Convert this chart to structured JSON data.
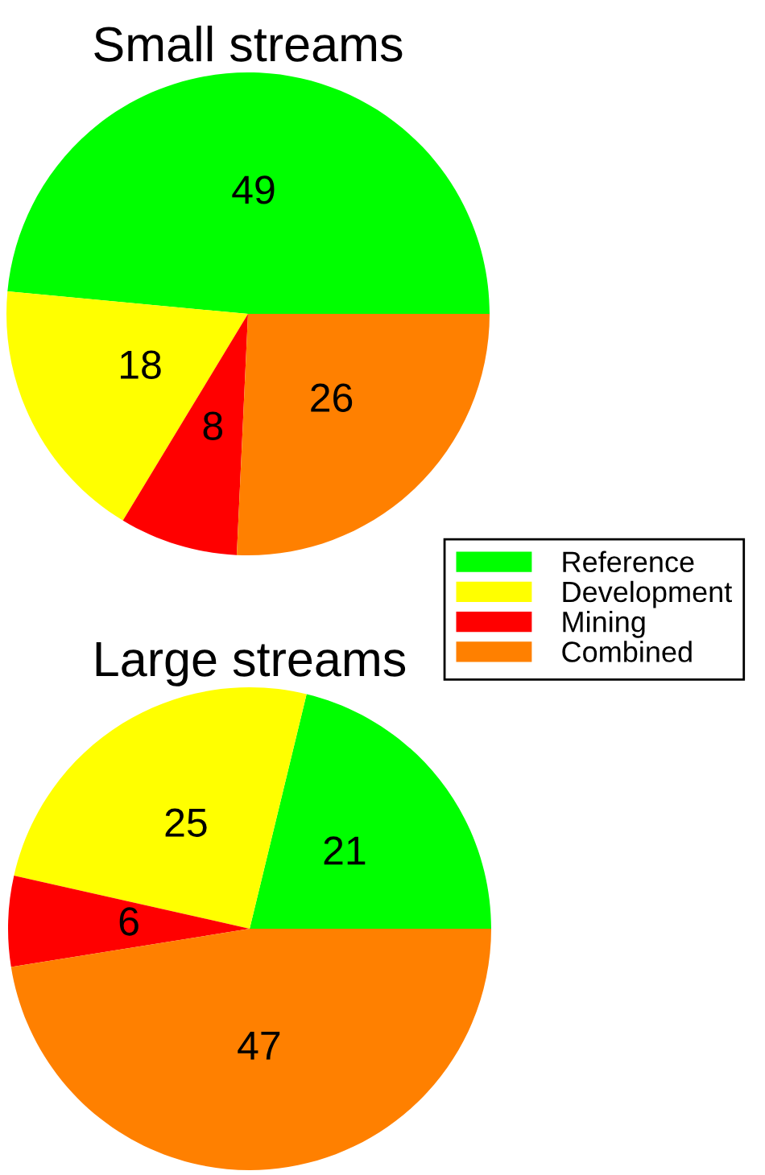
{
  "chart_data": [
    {
      "type": "pie",
      "title": "Small streams",
      "categories": [
        "Reference",
        "Development",
        "Mining",
        "Combined"
      ],
      "values": [
        49,
        18,
        8,
        26
      ],
      "colors": [
        "#00ff00",
        "#ffff00",
        "#ff0000",
        "#ff8000"
      ],
      "data_labels": true,
      "legend": "bottom right"
    },
    {
      "type": "pie",
      "title": "Large streams",
      "categories": [
        null,
        null,
        null,
        null
      ],
      "values": [
        21,
        25,
        6,
        47
      ],
      "colors": [
        "#00ff00",
        "#ffff00",
        "#ff0000",
        "#ff8000"
      ],
      "data_labels": true
    }
  ]
}
